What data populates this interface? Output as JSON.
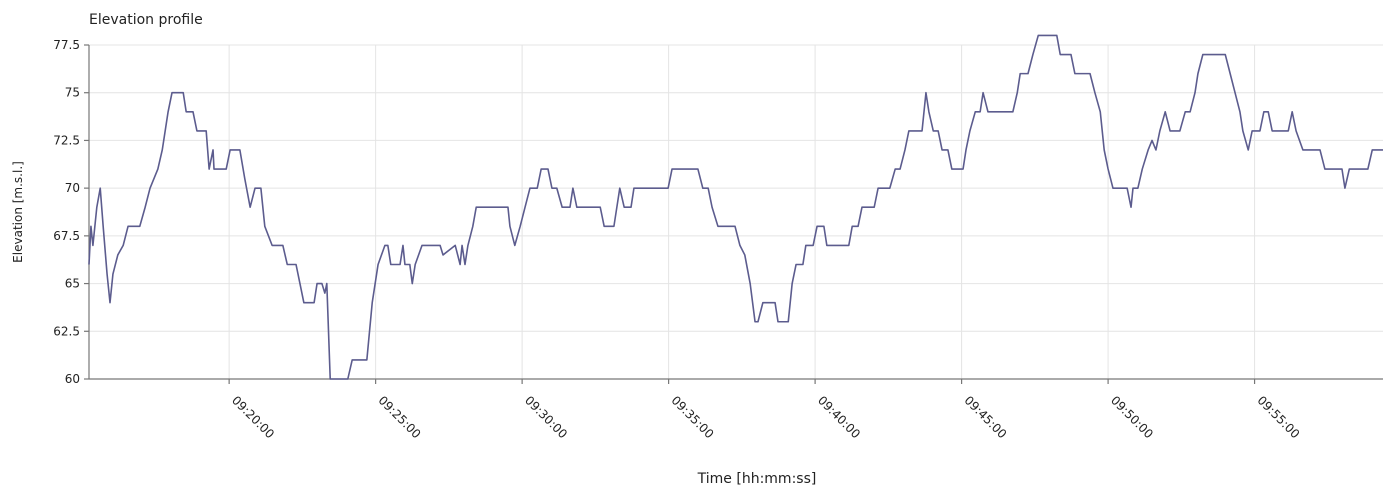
{
  "chart_data": {
    "type": "line",
    "title": "Elevation profile",
    "x_label": "Time  [hh:mm:ss]",
    "y_label": "Elevation [m.s.l.]",
    "x": [
      "09:15:13",
      "09:15:17",
      "09:15:21",
      "09:15:29",
      "09:15:36",
      "09:15:42",
      "09:15:50",
      "09:15:56",
      "09:16:02",
      "09:16:12",
      "09:16:23",
      "09:16:33",
      "09:16:57",
      "09:17:08",
      "09:17:18",
      "09:17:34",
      "09:17:43",
      "09:17:55",
      "09:18:03",
      "09:18:26",
      "09:18:32",
      "09:18:46",
      "09:18:54",
      "09:19:13",
      "09:19:19",
      "09:19:27",
      "09:19:29",
      "09:19:54",
      "09:20:02",
      "09:20:22",
      "09:20:32",
      "09:20:43",
      "09:20:53",
      "09:21:05",
      "09:21:13",
      "09:21:28",
      "09:21:50",
      "09:21:59",
      "09:22:17",
      "09:22:25",
      "09:22:33",
      "09:22:54",
      "09:23:00",
      "09:23:10",
      "09:23:16",
      "09:23:20",
      "09:23:27",
      "09:24:03",
      "09:24:12",
      "09:24:42",
      "09:24:53",
      "09:25:05",
      "09:25:19",
      "09:25:25",
      "09:25:31",
      "09:25:50",
      "09:25:56",
      "09:26:00",
      "09:26:10",
      "09:26:15",
      "09:26:21",
      "09:26:35",
      "09:27:12",
      "09:27:18",
      "09:27:43",
      "09:27:53",
      "09:27:57",
      "09:28:03",
      "09:28:09",
      "09:28:19",
      "09:28:26",
      "09:29:31",
      "09:29:35",
      "09:29:45",
      "09:29:56",
      "09:30:06",
      "09:30:16",
      "09:30:31",
      "09:30:39",
      "09:30:53",
      "09:31:01",
      "09:31:11",
      "09:31:22",
      "09:31:38",
      "09:31:44",
      "09:31:52",
      "09:32:40",
      "09:32:48",
      "09:33:08",
      "09:33:20",
      "09:33:29",
      "09:33:43",
      "09:33:49",
      "09:34:59",
      "09:35:07",
      "09:36:00",
      "09:36:10",
      "09:36:21",
      "09:36:29",
      "09:36:41",
      "09:37:16",
      "09:37:26",
      "09:37:36",
      "09:37:47",
      "09:37:57",
      "09:38:03",
      "09:38:13",
      "09:38:38",
      "09:38:44",
      "09:39:05",
      "09:39:13",
      "09:39:21",
      "09:39:35",
      "09:39:41",
      "09:39:56",
      "09:40:04",
      "09:40:18",
      "09:40:24",
      "09:41:09",
      "09:41:16",
      "09:41:28",
      "09:41:36",
      "09:42:01",
      "09:42:09",
      "09:42:33",
      "09:42:44",
      "09:42:54",
      "09:43:04",
      "09:43:12",
      "09:43:39",
      "09:43:47",
      "09:43:53",
      "09:44:02",
      "09:44:12",
      "09:44:20",
      "09:44:32",
      "09:44:40",
      "09:45:03",
      "09:45:09",
      "09:45:17",
      "09:45:28",
      "09:45:38",
      "09:45:44",
      "09:45:54",
      "09:46:45",
      "09:46:54",
      "09:47:00",
      "09:47:16",
      "09:47:26",
      "09:47:37",
      "09:48:15",
      "09:48:22",
      "09:48:44",
      "09:48:52",
      "09:49:23",
      "09:49:33",
      "09:49:44",
      "09:49:52",
      "09:50:00",
      "09:50:10",
      "09:50:39",
      "09:50:47",
      "09:50:51",
      "09:51:01",
      "09:51:10",
      "09:51:22",
      "09:51:30",
      "09:51:38",
      "09:51:46",
      "09:51:57",
      "09:52:07",
      "09:52:27",
      "09:52:38",
      "09:52:48",
      "09:52:58",
      "09:53:04",
      "09:53:14",
      "09:54:00",
      "09:54:10",
      "09:54:20",
      "09:54:30",
      "09:54:36",
      "09:54:47",
      "09:54:55",
      "09:55:11",
      "09:55:19",
      "09:55:28",
      "09:55:36",
      "09:56:09",
      "09:56:17",
      "09:56:25",
      "09:56:39",
      "09:57:14",
      "09:57:24",
      "09:57:59",
      "09:58:05",
      "09:58:14",
      "09:58:52",
      "09:59:01",
      "09:59:23"
    ],
    "series": [
      {
        "color": "#5c5c8e",
        "values": [
          66,
          68,
          67,
          69,
          70,
          68,
          65.5,
          64,
          65.5,
          66.5,
          67,
          68,
          68,
          69,
          70,
          71,
          72,
          74,
          75,
          75,
          74,
          74,
          73,
          73,
          71,
          72,
          71,
          71,
          72,
          72,
          70.5,
          69,
          70,
          70,
          68,
          67,
          67,
          66,
          66,
          65,
          64,
          64,
          65,
          65,
          64.5,
          65,
          60,
          60,
          61,
          61,
          64,
          66,
          67,
          67,
          66,
          66,
          67,
          66,
          66,
          65,
          66,
          67,
          67,
          66.5,
          67,
          66,
          67,
          66,
          67,
          68,
          69,
          69,
          68,
          67,
          68,
          69,
          70,
          70,
          71,
          71,
          70,
          70,
          69,
          69,
          70,
          69,
          69,
          68,
          68,
          70,
          69,
          69,
          70,
          70,
          71,
          71,
          70,
          70,
          69,
          68,
          68,
          67,
          66.5,
          65,
          63,
          63,
          64,
          64,
          63,
          63,
          65,
          66,
          66,
          67,
          67,
          68,
          68,
          67,
          67,
          68,
          68,
          69,
          69,
          70,
          70,
          71,
          71,
          72,
          73,
          73,
          75,
          74,
          73,
          73,
          72,
          72,
          71,
          71,
          72,
          73,
          74,
          74,
          75,
          74,
          74,
          75,
          76,
          76,
          77,
          78,
          78,
          77,
          77,
          76,
          76,
          75,
          74,
          72,
          71,
          70,
          70,
          69,
          70,
          70,
          71,
          72,
          72.5,
          72,
          73,
          74,
          73,
          73,
          74,
          74,
          75,
          76,
          77,
          77,
          76,
          75,
          74,
          73,
          72,
          73,
          73,
          74,
          74,
          73,
          73,
          74,
          73,
          72,
          72,
          71,
          71,
          70,
          71,
          71,
          72,
          72
        ]
      }
    ],
    "xlim": [
      "09:15:13",
      "09:59:23"
    ],
    "xticks": [
      "09:20:00",
      "09:25:00",
      "09:30:00",
      "09:35:00",
      "09:40:00",
      "09:45:00",
      "09:50:00",
      "09:55:00"
    ],
    "ylim": [
      60,
      77.5
    ],
    "yticks": [
      60,
      62.5,
      65,
      67.5,
      70,
      72.5,
      75,
      77.5
    ],
    "grid": true
  }
}
